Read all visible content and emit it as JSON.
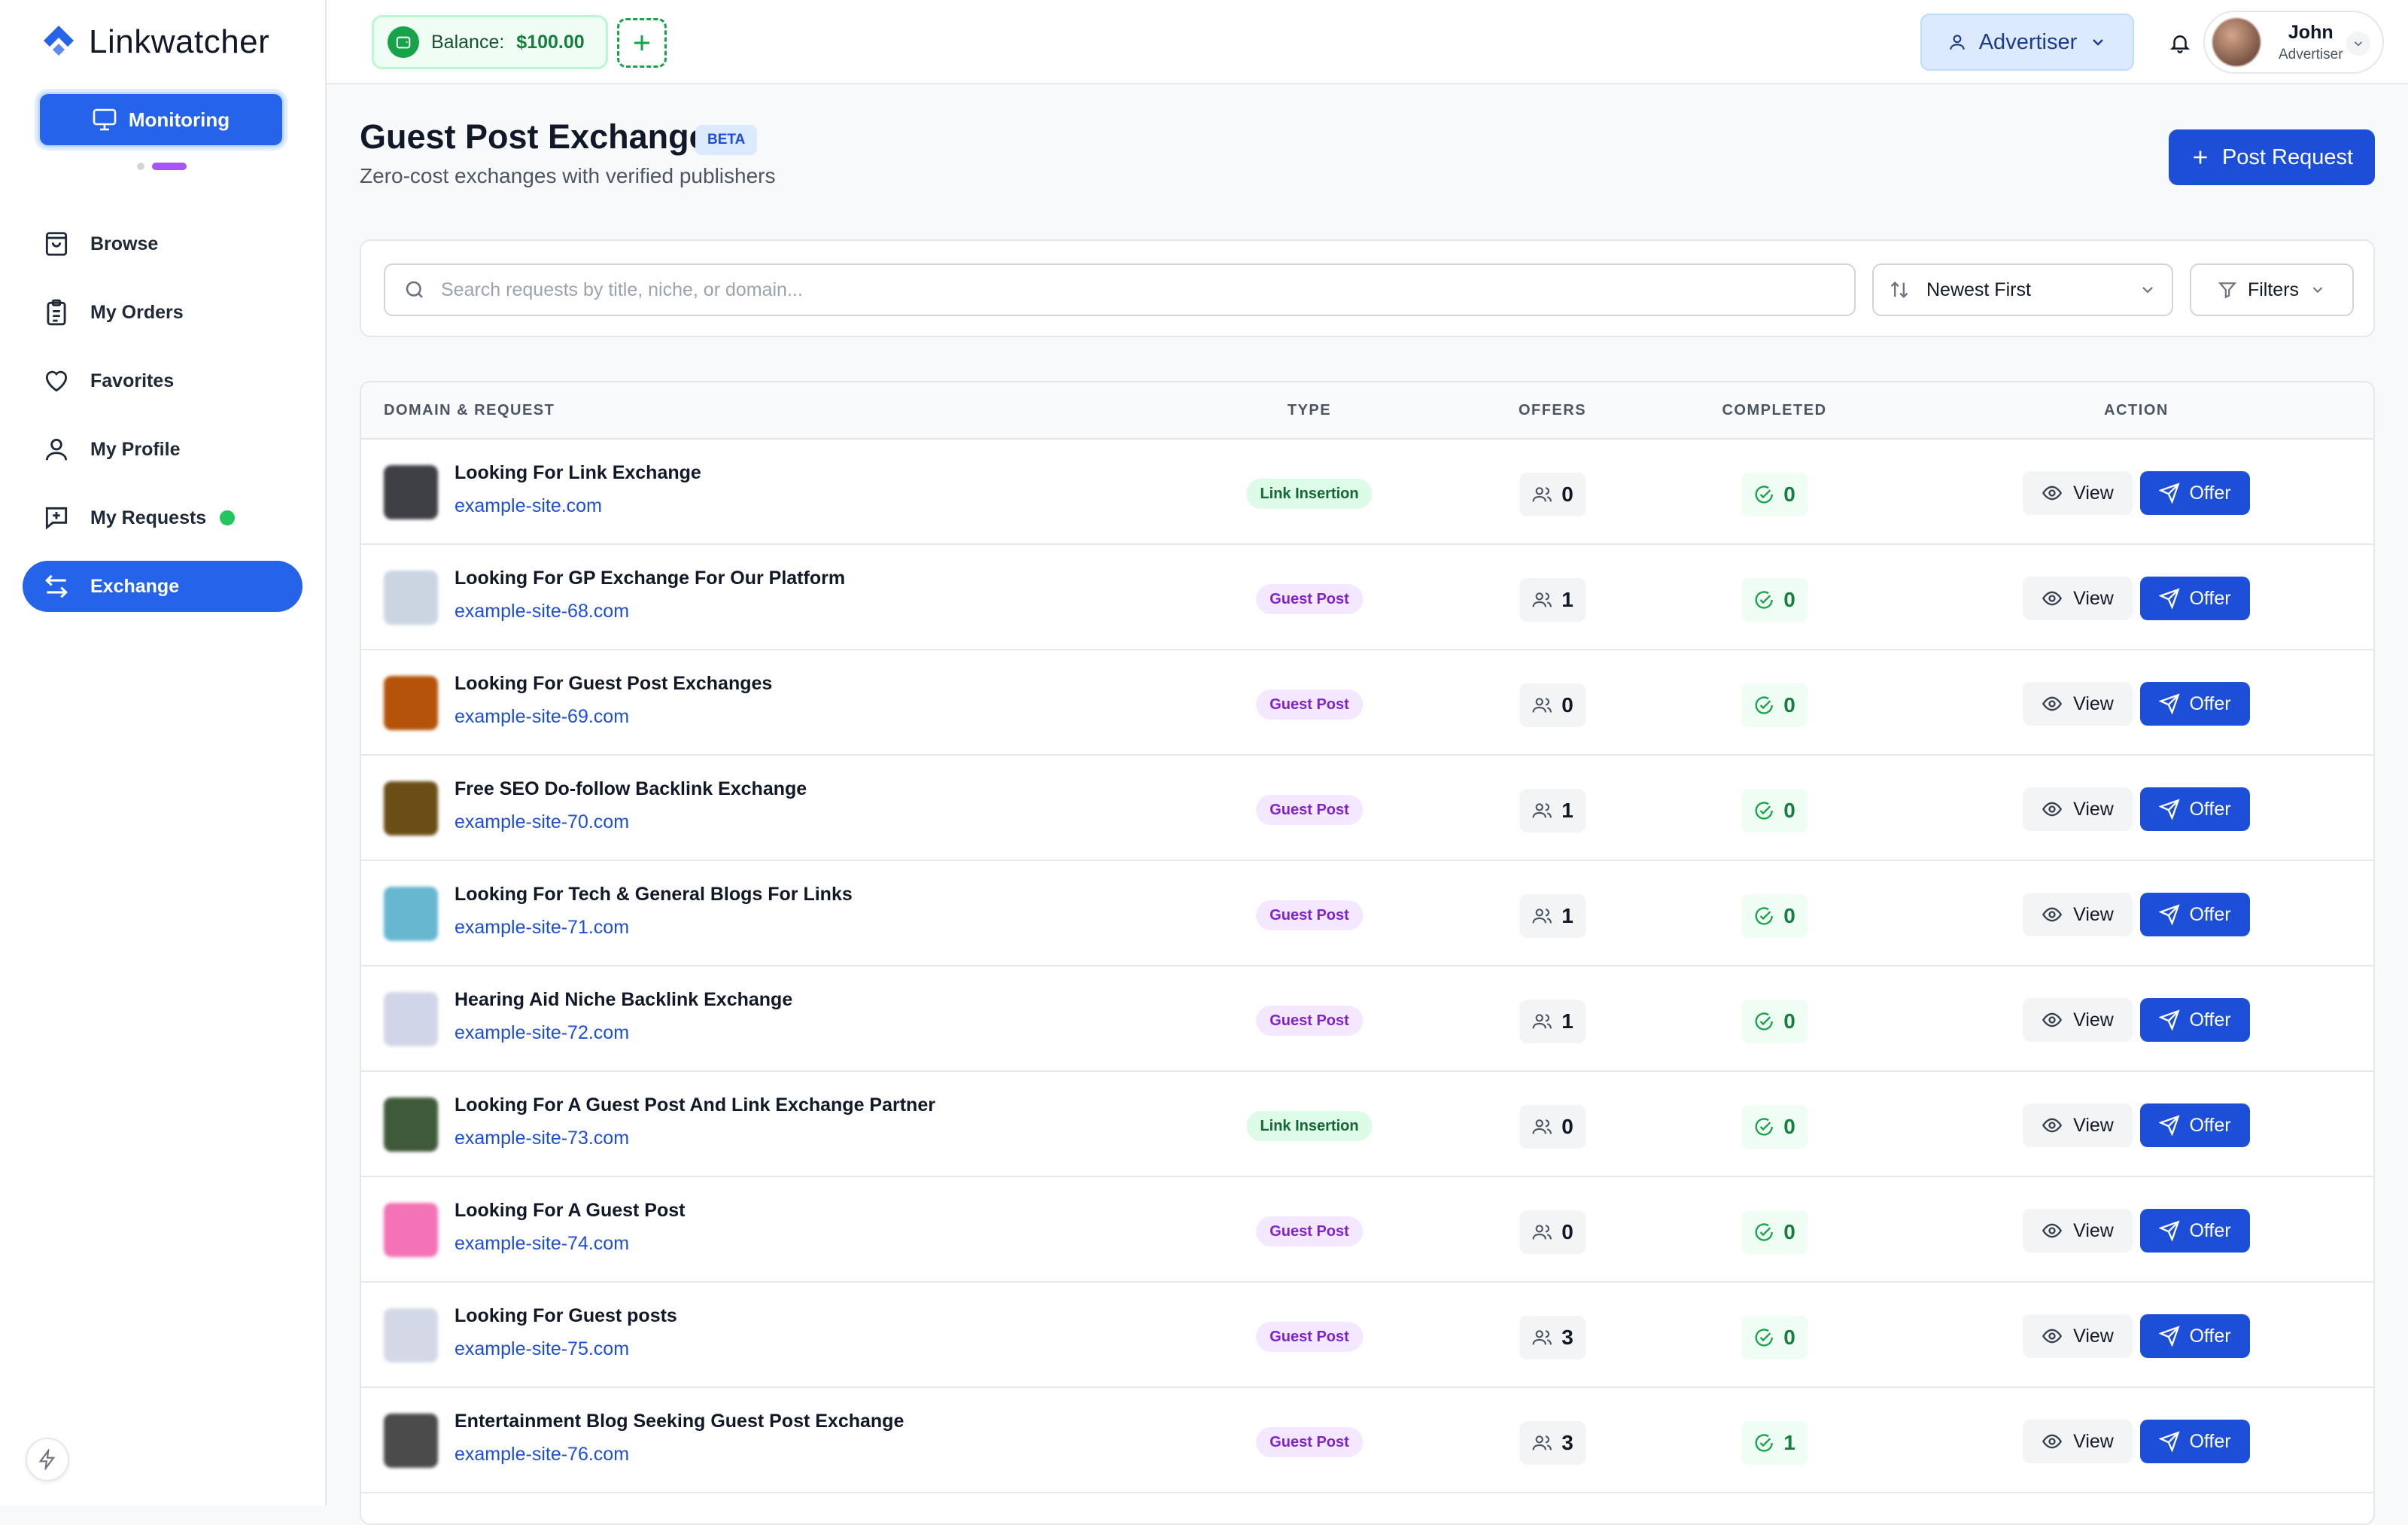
{
  "sidebar": {
    "brand": "Linkwatcher",
    "monitoring_label": "Monitoring",
    "items": [
      {
        "label": "Browse",
        "icon": "shopping-bag-icon"
      },
      {
        "label": "My Orders",
        "icon": "clipboard-icon"
      },
      {
        "label": "Favorites",
        "icon": "heart-icon"
      },
      {
        "label": "My Profile",
        "icon": "user-icon"
      },
      {
        "label": "My Requests",
        "icon": "message-plus-icon"
      },
      {
        "label": "Exchange",
        "icon": "swap-icon"
      }
    ]
  },
  "topbar": {
    "balance_label": "Balance:",
    "balance_value": "$100.00",
    "role_label": "Advertiser",
    "user_name": "John",
    "user_role": "Advertiser"
  },
  "header": {
    "title": "Guest Post Exchange",
    "badge": "BETA",
    "subtitle": "Zero-cost exchanges with verified publishers",
    "post_button": "Post Request"
  },
  "filters": {
    "search_placeholder": "Search requests by title, niche, or domain...",
    "sort_value": "Newest First",
    "filters_label": "Filters"
  },
  "table": {
    "columns": {
      "domain": "DOMAIN & REQUEST",
      "type": "TYPE",
      "offers": "OFFERS",
      "completed": "COMPLETED",
      "action": "ACTION"
    },
    "view_label": "View",
    "offer_label": "Offer",
    "rows": [
      {
        "title": "Looking For Link Exchange",
        "domain": "example-site.com",
        "type": "Link Insertion",
        "offers": "0",
        "completed": "0",
        "thumb": "#3f3f46"
      },
      {
        "title": "Looking For GP Exchange For Our Platform",
        "domain": "example-site-68.com",
        "type": "Guest Post",
        "offers": "1",
        "completed": "0",
        "thumb": "#cbd5e1"
      },
      {
        "title": "Looking For Guest Post Exchanges",
        "domain": "example-site-69.com",
        "type": "Guest Post",
        "offers": "0",
        "completed": "0",
        "thumb": "#b45309"
      },
      {
        "title": "Free SEO Do-follow Backlink Exchange",
        "domain": "example-site-70.com",
        "type": "Guest Post",
        "offers": "1",
        "completed": "0",
        "thumb": "#6b4e16"
      },
      {
        "title": "Looking For Tech & General Blogs For Links",
        "domain": "example-site-71.com",
        "type": "Guest Post",
        "offers": "1",
        "completed": "0",
        "thumb": "#67b7d1"
      },
      {
        "title": "Hearing Aid Niche Backlink Exchange",
        "domain": "example-site-72.com",
        "type": "Guest Post",
        "offers": "1",
        "completed": "0",
        "thumb": "#d1d5e8"
      },
      {
        "title": "Looking For A Guest Post And Link Exchange Partner",
        "domain": "example-site-73.com",
        "type": "Link Insertion",
        "offers": "0",
        "completed": "0",
        "thumb": "#3f5a3a"
      },
      {
        "title": "Looking For A Guest Post",
        "domain": "example-site-74.com",
        "type": "Guest Post",
        "offers": "0",
        "completed": "0",
        "thumb": "#f472b6"
      },
      {
        "title": "Looking For Guest posts",
        "domain": "example-site-75.com",
        "type": "Guest Post",
        "offers": "3",
        "completed": "0",
        "thumb": "#d4d7e6"
      },
      {
        "title": "Entertainment Blog Seeking Guest Post Exchange",
        "domain": "example-site-76.com",
        "type": "Guest Post",
        "offers": "3",
        "completed": "1",
        "thumb": "#4b4b4b"
      }
    ]
  }
}
